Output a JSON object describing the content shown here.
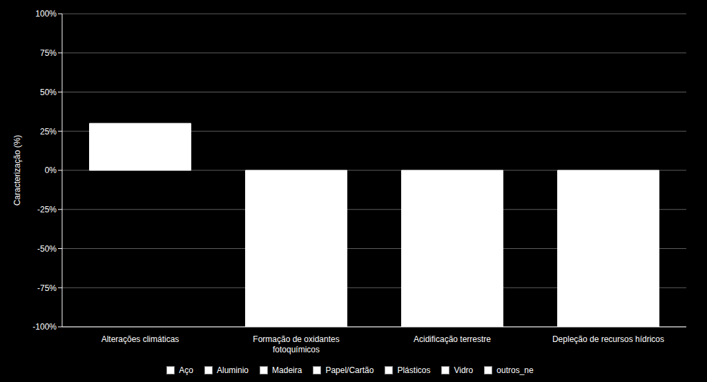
{
  "chart_data": {
    "type": "bar",
    "categories": [
      "Alterações climáticas",
      "Formação de oxidantes\nfotoquímicos",
      "Acidificação terrestre",
      "Depleção de recursos hídricos"
    ],
    "values": [
      30,
      -100,
      -100,
      -100
    ],
    "color": "#ffffff",
    "ylabel": "Caracterização (%)",
    "ylim": [
      -100,
      100
    ],
    "yticks": [
      {
        "value": -100,
        "label": "-100%"
      },
      {
        "value": -75,
        "label": "-75%"
      },
      {
        "value": -50,
        "label": "-50%"
      },
      {
        "value": -25,
        "label": "-25%"
      },
      {
        "value": 0,
        "label": "0%"
      },
      {
        "value": 25,
        "label": "25%"
      },
      {
        "value": 50,
        "label": "50%"
      },
      {
        "value": 75,
        "label": "75%"
      },
      {
        "value": 100,
        "label": "100%"
      }
    ],
    "grid": true,
    "legend": "bottom",
    "legend_entries": [
      "Aço",
      "Aluminio",
      "Madeira",
      "Papel/Cartão",
      "Plásticos",
      "Vidro",
      "outros_ne"
    ]
  }
}
